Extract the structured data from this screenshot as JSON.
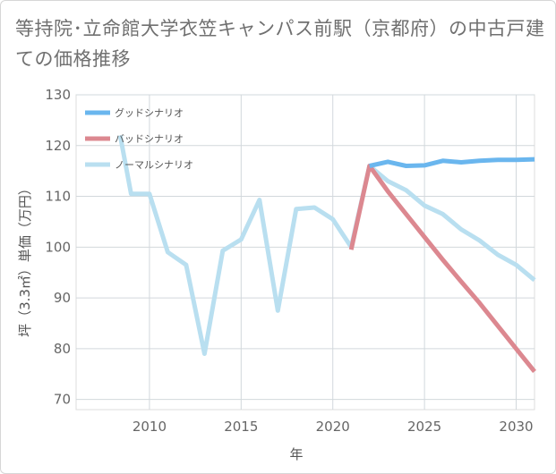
{
  "chart_data": {
    "type": "line",
    "title": "等持院･立命館大学衣笠キャンパス前駅（京都府）の中古戸建ての価格推移",
    "xlabel": "年",
    "ylabel": "坪（3.3㎡）単価（万円）",
    "xlim": [
      2006,
      2031
    ],
    "ylim": [
      68,
      130
    ],
    "xticks": [
      2010,
      2015,
      2020,
      2025,
      2030
    ],
    "yticks": [
      70,
      80,
      90,
      100,
      110,
      120,
      130
    ],
    "legend_position": "top-left",
    "series": [
      {
        "name": "グッドシナリオ",
        "color": "#6ab6ee",
        "x": [
          2022,
          2023,
          2024,
          2025,
          2026,
          2027,
          2028,
          2029,
          2030,
          2031
        ],
        "y": [
          116.0,
          116.8,
          116.0,
          116.1,
          117.0,
          116.7,
          117.0,
          117.2,
          117.2,
          117.3
        ]
      },
      {
        "name": "バッドシナリオ",
        "color": "#dc8890",
        "x": [
          2021,
          2022,
          2023,
          2024,
          2025,
          2026,
          2027,
          2028,
          2029,
          2030,
          2031
        ],
        "y": [
          99.5,
          116.0,
          111.0,
          106.5,
          102.0,
          97.5,
          93.2,
          89.0,
          84.5,
          80.0,
          75.5
        ]
      },
      {
        "name": "ノーマルシナリオ",
        "color": "#b9dff0",
        "x": [
          2008.4,
          2009,
          2010,
          2011,
          2012,
          2013,
          2014,
          2015,
          2016,
          2017,
          2018,
          2019,
          2020,
          2021,
          2022,
          2023,
          2024,
          2025,
          2026,
          2027,
          2028,
          2029,
          2030,
          2031
        ],
        "y": [
          122.0,
          110.5,
          110.5,
          99.0,
          96.5,
          79.0,
          99.3,
          101.5,
          109.3,
          87.5,
          107.5,
          107.8,
          105.5,
          100.0,
          116.0,
          113.0,
          111.2,
          108.2,
          106.5,
          103.5,
          101.3,
          98.5,
          96.5,
          93.5
        ]
      }
    ]
  }
}
